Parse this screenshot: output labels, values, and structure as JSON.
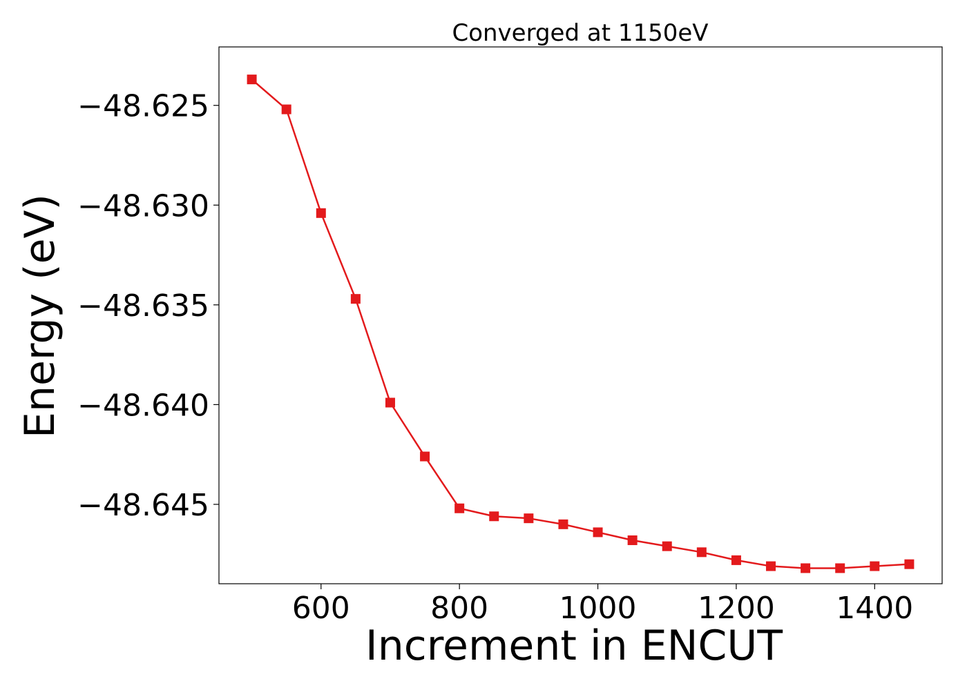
{
  "chart_data": {
    "type": "line",
    "title": "Converged at 1150eV",
    "xlabel": "Increment in ENCUT",
    "ylabel": "Energy (eV)",
    "xlim": [
      452.5,
      1497.5
    ],
    "ylim": [
      -48.64898,
      -48.62207
    ],
    "xticks": [
      600,
      800,
      1000,
      1200,
      1400
    ],
    "xtick_labels": [
      "600",
      "800",
      "1000",
      "1200",
      "1400"
    ],
    "yticks": [
      -48.625,
      -48.63,
      -48.635,
      -48.64,
      -48.645
    ],
    "ytick_labels": [
      "−48.625",
      "−48.630",
      "−48.635",
      "−48.640",
      "−48.645"
    ],
    "grid": false,
    "series": [
      {
        "color": "#e31a1c",
        "marker": "square",
        "x": [
          500,
          550,
          600,
          650,
          700,
          750,
          800,
          850,
          900,
          950,
          1000,
          1050,
          1100,
          1150,
          1200,
          1250,
          1300,
          1350,
          1400,
          1450
        ],
        "y": [
          -48.6237,
          -48.6252,
          -48.6304,
          -48.6347,
          -48.6399,
          -48.6426,
          -48.6452,
          -48.6456,
          -48.6457,
          -48.646,
          -48.6464,
          -48.6468,
          -48.6471,
          -48.6474,
          -48.6478,
          -48.6481,
          -48.6482,
          -48.6482,
          -48.6481,
          -48.648
        ]
      }
    ]
  }
}
